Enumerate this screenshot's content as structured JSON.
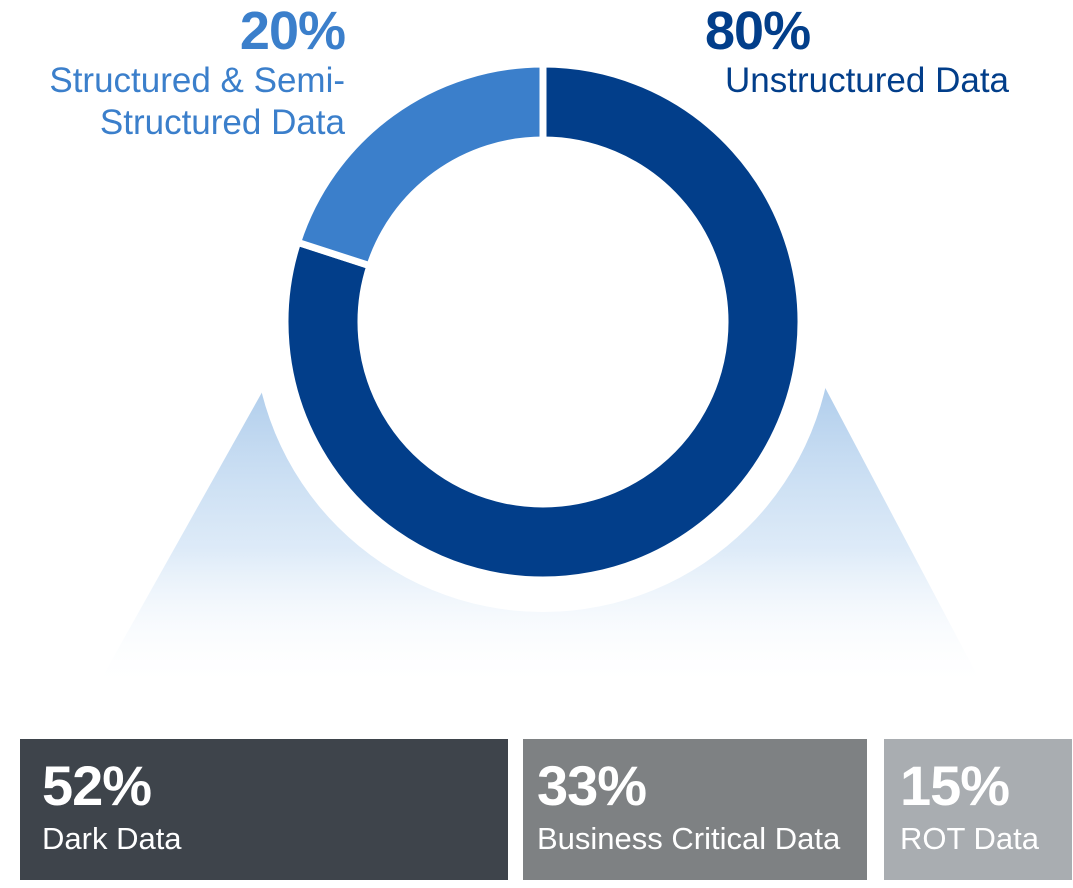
{
  "colors": {
    "unstructured": "#023e8a",
    "structured": "#3b7fcb",
    "dark": "#3e444b",
    "business": "#7e8183",
    "rot": "#a9adb1",
    "cone": "#a9c9ea"
  },
  "chart_data": [
    {
      "type": "pie",
      "style": "donut",
      "slices": [
        {
          "value": 80,
          "label_pct": "80%",
          "label": "Unstructured Data",
          "color": "#023e8a"
        },
        {
          "value": 20,
          "label_pct": "20%",
          "label_line1": "Structured & Semi-",
          "label_line2": "Structured Data",
          "color": "#3b7fcb"
        }
      ]
    },
    {
      "type": "bar",
      "style": "stacked-horizontal",
      "segments": [
        {
          "value": 52,
          "label_pct": "52%",
          "label": "Dark Data",
          "color": "#3e444b"
        },
        {
          "value": 33,
          "label_pct": "33%",
          "label": "Business Critical Data",
          "color": "#7e8183"
        },
        {
          "value": 15,
          "label_pct": "15%",
          "label": "ROT Data",
          "color": "#a9adb1"
        }
      ]
    }
  ]
}
